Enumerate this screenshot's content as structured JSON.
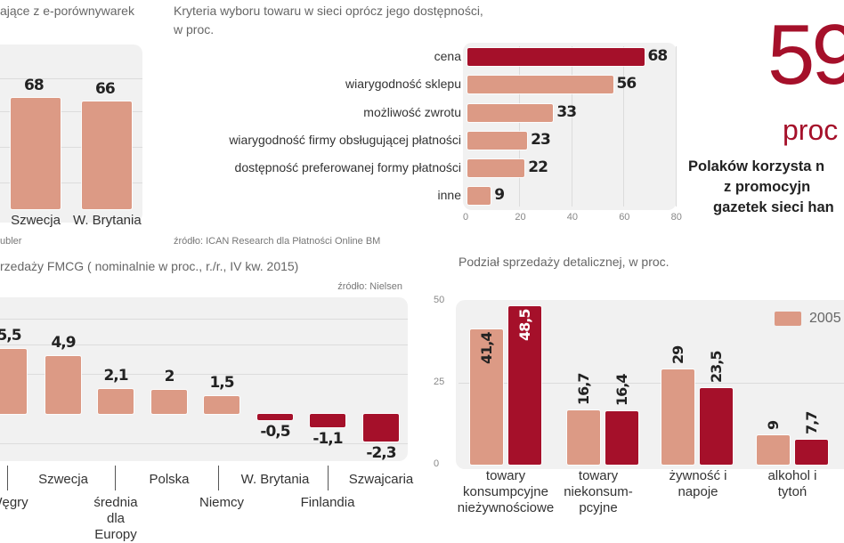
{
  "colors": {
    "light": "#dc9a85",
    "dark": "#a5102a"
  },
  "chart_data": [
    {
      "type": "bar",
      "title": "ające z e-porównywarek",
      "source": "ubler",
      "categories": [
        "Szwecja",
        "W. Brytania"
      ],
      "values": [
        68,
        66
      ]
    },
    {
      "type": "bar",
      "orientation": "horizontal",
      "title": "Kryteria wyboru towaru w sieci oprócz jego dostępności,",
      "subtitle": "w proc.",
      "source": "źródło:  ICAN Research dla Płatności Online BM",
      "categories": [
        "cena",
        "wiarygodność sklepu",
        "możliwość zwrotu",
        "wiarygodność firmy obsługującej płatności",
        "dostępność preferowanej formy płatności",
        "inne"
      ],
      "values": [
        68,
        56,
        33,
        23,
        22,
        9
      ],
      "xlim": [
        0,
        80
      ],
      "xticks": [
        "0",
        "20",
        "40",
        "60",
        "80"
      ],
      "grid": true
    },
    {
      "type": "bar",
      "title": "rzedaży FMCG ( nominalnie w proc., r./r., IV kw. 2015)",
      "source": "źródło: Nielsen",
      "categories": [
        "Węgry",
        "Szwecja",
        "średnia dla Europy",
        "Polska",
        "Niemcy",
        "W. Brytania",
        "Finlandia",
        "Szwajcaria"
      ],
      "values": [
        5.5,
        4.9,
        2.1,
        2,
        1.5,
        -0.5,
        -1.1,
        -2.3
      ],
      "value_labels": [
        "5,5",
        "4,9",
        "2,1",
        "2",
        "1,5",
        "-0,5",
        "-1,1",
        "-2,3"
      ]
    },
    {
      "type": "bar",
      "title": "Podział sprzedaży detalicznej, w proc.",
      "categories": [
        "towary konsumpcyjne nieżywnościowe",
        "towary niekonsum-pcyjne",
        "żywność i napoje",
        "alkohol i tytoń"
      ],
      "series": [
        {
          "name": "2005",
          "values": [
            41.4,
            16.7,
            29,
            9
          ],
          "labels": [
            "41,4",
            "16,7",
            "29",
            "9"
          ]
        },
        {
          "values": [
            48.5,
            16.4,
            23.5,
            7.7
          ],
          "labels": [
            "48,5",
            "16,4",
            "23,5",
            "7,7"
          ]
        }
      ],
      "ylim": [
        0,
        50
      ],
      "yticks": [
        "0",
        "25",
        "50"
      ],
      "legend": "top-right",
      "grid": true
    }
  ],
  "stat": {
    "number": "59",
    "unit": "proc",
    "lines": [
      "Polaków korzysta n",
      "z promocyjn",
      "gazetek sieci han"
    ]
  }
}
